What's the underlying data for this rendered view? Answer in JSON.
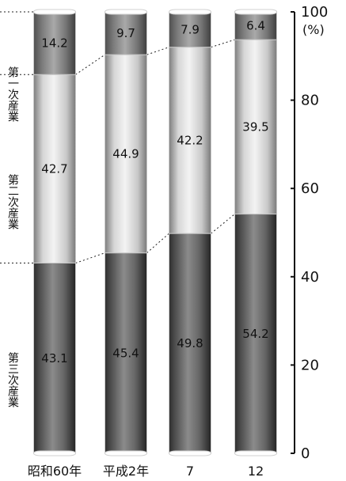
{
  "chart_data": {
    "type": "bar",
    "stacked": true,
    "categories": [
      "昭和60年",
      "平成2年",
      "7",
      "12"
    ],
    "series": [
      {
        "name": "第三次産業",
        "values": [
          43.1,
          45.4,
          49.8,
          54.2
        ],
        "color": "#4a4a4a"
      },
      {
        "name": "第二次産業",
        "values": [
          42.7,
          44.9,
          42.2,
          39.5
        ],
        "color": "#d8d8d8"
      },
      {
        "name": "第一次産業",
        "values": [
          14.2,
          9.7,
          7.9,
          6.4
        ],
        "color": "#6d6d6d"
      }
    ],
    "ylim": [
      0,
      100
    ],
    "yticks": [
      0,
      20,
      40,
      60,
      80,
      100
    ],
    "yunit": "(%)",
    "title": "",
    "xlabel": "",
    "ylabel": ""
  }
}
